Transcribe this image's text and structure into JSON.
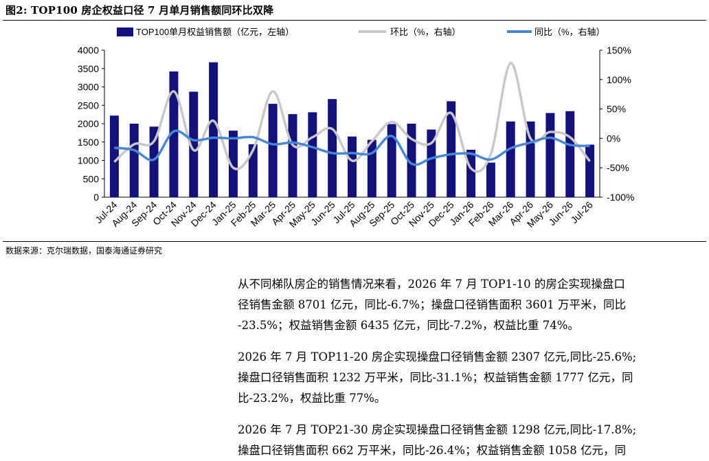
{
  "figure": {
    "title": "图2:  TOP100 房企权益口径 7 月单月销售额同环比双降",
    "source": "数据来源：克尔瑞数据，国泰海通证券研究"
  },
  "chart_data": {
    "type": "bar",
    "categories": [
      "Jul-24",
      "Aug-24",
      "Sep-24",
      "Oct-24",
      "Nov-24",
      "Dec-24",
      "Jan-25",
      "Feb-25",
      "Mar-25",
      "Apr-25",
      "May-25",
      "Jun-25",
      "Jul-25",
      "Aug-25",
      "Sep-25",
      "Oct-25",
      "Nov-25",
      "Dec-25",
      "Jan-26",
      "Feb-26",
      "Mar-26",
      "Apr-26",
      "May-26",
      "Jun-26",
      "Jul-26"
    ],
    "series": [
      {
        "name": "TOP100单月权益销售额（亿元，左轴）",
        "type": "bar",
        "axis": "left",
        "color": "#12127a",
        "values": [
          2220,
          2000,
          1920,
          3420,
          2870,
          3670,
          1810,
          1440,
          2540,
          2260,
          2310,
          2670,
          1650,
          1560,
          1990,
          2000,
          1840,
          2610,
          1290,
          940,
          2060,
          2060,
          2290,
          2340,
          1430
        ]
      },
      {
        "name": "环比（%，右轴）",
        "type": "line",
        "axis": "right",
        "color": "#c8c8c8",
        "values": [
          -40,
          -10,
          -5,
          80,
          -20,
          30,
          -50,
          -20,
          80,
          -11,
          2,
          16,
          -38,
          -5,
          28,
          -1,
          -8,
          43,
          -51,
          -27,
          128,
          0,
          11,
          2,
          -39
        ]
      },
      {
        "name": "同比（%，右轴）",
        "type": "line",
        "axis": "right",
        "color": "#4a86d6",
        "values": [
          -16,
          -20,
          -36,
          12,
          -3,
          1,
          0,
          2,
          -10,
          -7,
          -15,
          -25,
          -25,
          -25,
          4,
          -43,
          -34,
          -27,
          -26,
          -36,
          -17,
          -7,
          1,
          -11,
          -13
        ]
      }
    ],
    "y_left": {
      "min": 0,
      "max": 4000,
      "ticks": [
        0,
        500,
        1000,
        1500,
        2000,
        2500,
        3000,
        3500,
        4000
      ]
    },
    "y_right": {
      "min": -100,
      "max": 150,
      "ticks": [
        "-100%",
        "-50%",
        "0%",
        "50%",
        "100%",
        "150%"
      ]
    },
    "legend_position": "top",
    "grid": false
  },
  "paragraphs": [
    [
      "从不同梯队房企的销售情况来看，2026 年 7 月 TOP1-10 的房企实现操盘口",
      "径销售金额 8701 亿元，同比-6.7%；操盘口径销售面积 3601 万平米，同比",
      "-23.5%；权益销售金额 6435 亿元，同比-7.2%，权益比重 74%。"
    ],
    [
      "2026 年 7 月 TOP11-20 房企实现操盘口径销售金额 2307 亿元,同比-25.6%;",
      "操盘口径销售面积 1232 万平米，同比-31.1%；权益销售金额 1777 亿元，同",
      "比-23.2%，权益比重 77%。"
    ],
    [
      "2026 年 7 月 TOP21-30 房企实现操盘口径销售金额 1298 亿元,同比-17.8%;",
      "操盘口径销售面积 662 万平米，同比-26.4%；权益销售金额 1058 亿元，同"
    ]
  ]
}
